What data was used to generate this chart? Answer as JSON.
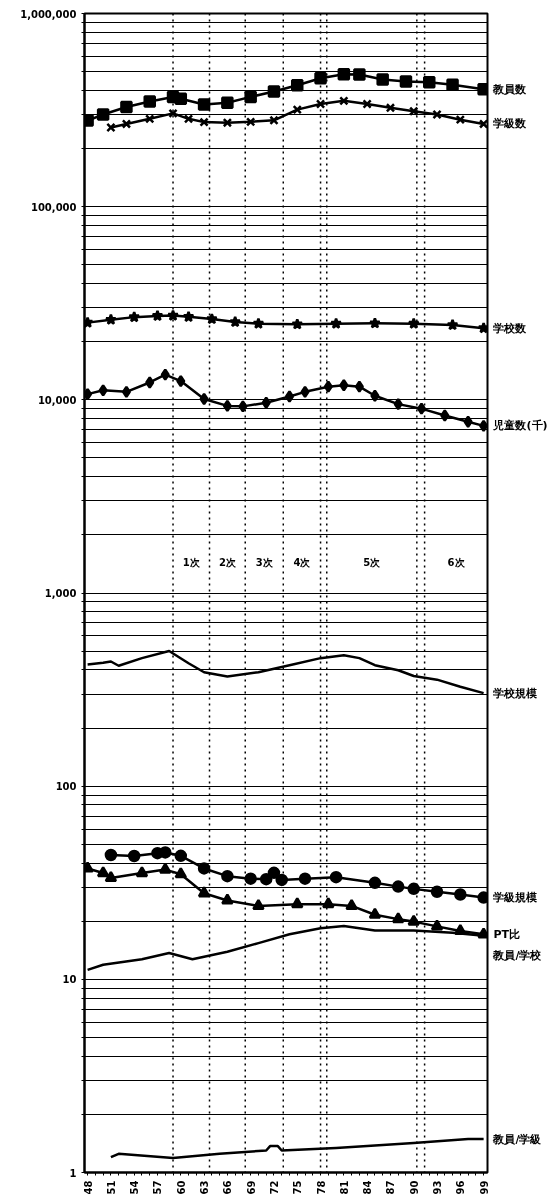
{
  "chart_data": {
    "type": "line",
    "log": "y",
    "grid": "y",
    "xlim": [
      1947.6,
      1999.5
    ],
    "ylim": [
      1,
      1000000
    ],
    "xticks": [
      {
        "value": 1948,
        "label": "48"
      },
      {
        "value": 1949,
        "label": null
      },
      {
        "value": 1950,
        "label": null
      },
      {
        "value": 1951,
        "label": "51"
      },
      {
        "value": 1952,
        "label": null
      },
      {
        "value": 1953,
        "label": null
      },
      {
        "value": 1954,
        "label": "54"
      },
      {
        "value": 1955,
        "label": null
      },
      {
        "value": 1956,
        "label": null
      },
      {
        "value": 1957,
        "label": "57"
      },
      {
        "value": 1958,
        "label": null
      },
      {
        "value": 1959,
        "label": null
      },
      {
        "value": 1960,
        "label": "60"
      },
      {
        "value": 1961,
        "label": null
      },
      {
        "value": 1962,
        "label": null
      },
      {
        "value": 1963,
        "label": "63"
      },
      {
        "value": 1964,
        "label": null
      },
      {
        "value": 1965,
        "label": null
      },
      {
        "value": 1966,
        "label": "66"
      },
      {
        "value": 1967,
        "label": null
      },
      {
        "value": 1968,
        "label": null
      },
      {
        "value": 1969,
        "label": "69"
      },
      {
        "value": 1970,
        "label": null
      },
      {
        "value": 1971,
        "label": null
      },
      {
        "value": 1972,
        "label": "72"
      },
      {
        "value": 1973,
        "label": null
      },
      {
        "value": 1974,
        "label": null
      },
      {
        "value": 1975,
        "label": "75"
      },
      {
        "value": 1976,
        "label": null
      },
      {
        "value": 1977,
        "label": null
      },
      {
        "value": 1978,
        "label": "78"
      },
      {
        "value": 1979,
        "label": null
      },
      {
        "value": 1980,
        "label": null
      },
      {
        "value": 1981,
        "label": "81"
      },
      {
        "value": 1982,
        "label": null
      },
      {
        "value": 1983,
        "label": null
      },
      {
        "value": 1984,
        "label": "84"
      },
      {
        "value": 1985,
        "label": null
      },
      {
        "value": 1986,
        "label": null
      },
      {
        "value": 1987,
        "label": "87"
      },
      {
        "value": 1988,
        "label": null
      },
      {
        "value": 1989,
        "label": null
      },
      {
        "value": 1990,
        "label": "90"
      },
      {
        "value": 1991,
        "label": null
      },
      {
        "value": 1992,
        "label": null
      },
      {
        "value": 1993,
        "label": "93"
      },
      {
        "value": 1994,
        "label": null
      },
      {
        "value": 1995,
        "label": null
      },
      {
        "value": 1996,
        "label": "96"
      },
      {
        "value": 1997,
        "label": null
      },
      {
        "value": 1998,
        "label": null
      },
      {
        "value": 1999,
        "label": "99"
      }
    ],
    "yticks": [
      1,
      {
        "value": 2,
        "label": null
      },
      {
        "value": 3,
        "label": null
      },
      {
        "value": 4,
        "label": null
      },
      {
        "value": 5,
        "label": null
      },
      {
        "value": 6,
        "label": null
      },
      {
        "value": 7,
        "label": null
      },
      {
        "value": 8,
        "label": null
      },
      {
        "value": 9,
        "label": null
      },
      10,
      {
        "value": 20,
        "label": null
      },
      {
        "value": 30,
        "label": null
      },
      {
        "value": 40,
        "label": null
      },
      {
        "value": 50,
        "label": null
      },
      {
        "value": 60,
        "label": null
      },
      {
        "value": 70,
        "label": null
      },
      {
        "value": 80,
        "label": null
      },
      {
        "value": 90,
        "label": null
      },
      100,
      {
        "value": 200,
        "label": null
      },
      {
        "value": 300,
        "label": null
      },
      {
        "value": 400,
        "label": null
      },
      {
        "value": 500,
        "label": null
      },
      {
        "value": 600,
        "label": null
      },
      {
        "value": 700,
        "label": null
      },
      {
        "value": 800,
        "label": null
      },
      {
        "value": 900,
        "label": null
      },
      {
        "value": 1000,
        "label": "1,000"
      },
      {
        "value": 2000,
        "label": null
      },
      {
        "value": 3000,
        "label": null
      },
      {
        "value": 4000,
        "label": null
      },
      {
        "value": 5000,
        "label": null
      },
      {
        "value": 6000,
        "label": null
      },
      {
        "value": 7000,
        "label": null
      },
      {
        "value": 8000,
        "label": null
      },
      {
        "value": 9000,
        "label": null
      },
      {
        "value": 10000,
        "label": "10,000"
      },
      {
        "value": 20000,
        "label": null
      },
      {
        "value": 30000,
        "label": null
      },
      {
        "value": 40000,
        "label": null
      },
      {
        "value": 50000,
        "label": null
      },
      {
        "value": 60000,
        "label": null
      },
      {
        "value": 70000,
        "label": null
      },
      {
        "value": 80000,
        "label": null
      },
      {
        "value": 90000,
        "label": null
      },
      {
        "value": 100000,
        "label": "100,000"
      },
      {
        "value": 200000,
        "label": null
      },
      {
        "value": 300000,
        "label": null
      },
      {
        "value": 400000,
        "label": null
      },
      {
        "value": 500000,
        "label": null
      },
      {
        "value": 600000,
        "label": null
      },
      {
        "value": 700000,
        "label": null
      },
      {
        "value": 800000,
        "label": null
      },
      {
        "value": 900000,
        "label": null
      },
      {
        "value": 1000000,
        "label": "1,000,000"
      }
    ],
    "series": [
      {
        "name": "教員数",
        "color": "#000000",
        "marker": "square",
        "x": [
          1948,
          1950,
          1953,
          1956,
          1959,
          1960,
          1963,
          1966,
          1969,
          1972,
          1975,
          1978,
          1981,
          1983,
          1986,
          1989,
          1992,
          1995,
          1999
        ],
        "values": [
          279000,
          300000,
          328000,
          350000,
          370000,
          362000,
          338000,
          345000,
          370000,
          395000,
          425000,
          462000,
          485000,
          483000,
          455000,
          445000,
          441000,
          428000,
          405000
        ]
      },
      {
        "name": "学級数",
        "color": "#000000",
        "marker": "cross",
        "x": [
          1951,
          1953,
          1956,
          1959,
          1961,
          1963,
          1966,
          1969,
          1972,
          1975,
          1978,
          1981,
          1984,
          1987,
          1990,
          1993,
          1996,
          1999
        ],
        "values": [
          257000,
          268000,
          285000,
          304000,
          285000,
          274000,
          272000,
          275000,
          280000,
          318000,
          340000,
          353000,
          340000,
          325000,
          312000,
          300000,
          282000,
          268000
        ]
      },
      {
        "name": "学校数",
        "color": "#000000",
        "marker": "star",
        "x": [
          1948,
          1951,
          1954,
          1957,
          1959,
          1961,
          1964,
          1967,
          1970,
          1975,
          1980,
          1985,
          1990,
          1995,
          1999
        ],
        "values": [
          25100,
          26000,
          26800,
          27200,
          27300,
          26900,
          26200,
          25300,
          24800,
          24600,
          24800,
          24900,
          24800,
          24400,
          23500
        ]
      },
      {
        "name": "児童数(千)",
        "color": "#000000",
        "marker": "diamond",
        "x": [
          1948,
          1950,
          1953,
          1956,
          1958,
          1960,
          1963,
          1966,
          1968,
          1971,
          1974,
          1976,
          1979,
          1981,
          1983,
          1985,
          1988,
          1991,
          1994,
          1997,
          1999
        ],
        "values": [
          10700,
          11200,
          11000,
          12300,
          13500,
          12500,
          10100,
          9300,
          9250,
          9660,
          10400,
          11000,
          11700,
          11900,
          11700,
          10500,
          9500,
          9000,
          8300,
          7700,
          7330
        ]
      },
      {
        "name": "学校規模",
        "color": "#000000",
        "marker": "none",
        "x": [
          1948,
          1950,
          1951,
          1952,
          1955,
          1958.5,
          1961,
          1963,
          1966,
          1970,
          1974,
          1978,
          1981,
          1983,
          1985,
          1988,
          1990,
          1993,
          1996,
          1999
        ],
        "values": [
          427,
          435,
          442,
          420,
          460,
          501,
          433,
          389,
          370,
          389,
          423,
          460,
          476,
          460,
          423,
          398,
          372,
          356,
          327,
          303
        ]
      },
      {
        "name": "学級規模",
        "color": "#000000",
        "marker": "circle",
        "x": [
          1951,
          1954,
          1957,
          1958,
          1960,
          1963,
          1966,
          1969,
          1971,
          1972,
          1973,
          1976,
          1980,
          1985,
          1988,
          1990,
          1993,
          1996,
          1999
        ],
        "values": [
          44,
          43.5,
          45,
          45.4,
          43.6,
          37.5,
          34.2,
          33.2,
          33,
          35.6,
          32.7,
          33.2,
          33.8,
          31.6,
          30.2,
          29.4,
          28.4,
          27.5,
          26.5
        ]
      },
      {
        "name": "PT比",
        "color": "#000000",
        "marker": "triangle",
        "x": [
          1948,
          1950,
          1951,
          1955,
          1958,
          1960,
          1963,
          1966,
          1970,
          1975,
          1979,
          1982,
          1985,
          1988,
          1990,
          1993,
          1996,
          1999
        ],
        "values": [
          37.5,
          35.5,
          33.5,
          35.5,
          37,
          35,
          27.9,
          25.6,
          24,
          24.5,
          24.5,
          24,
          21.6,
          20.5,
          19.9,
          18.8,
          17.8,
          17.1
        ]
      },
      {
        "name": "教員/学校",
        "color": "#000000",
        "marker": "none",
        "x": [
          1948,
          1950,
          1955,
          1958.5,
          1961.5,
          1966,
          1970,
          1974,
          1978,
          1981,
          1985,
          1990,
          1995,
          1999
        ],
        "values": [
          11.2,
          11.9,
          12.7,
          13.7,
          12.7,
          13.9,
          15.4,
          17.1,
          18.4,
          18.9,
          17.9,
          17.9,
          17.4,
          16.8
        ]
      },
      {
        "name": "教員/学級",
        "color": "#000000",
        "marker": "none",
        "x": [
          1951,
          1952,
          1959,
          1965,
          1971,
          1971.5,
          1972.5,
          1973,
          1980,
          1990,
          1997,
          1999
        ],
        "values": [
          1.2,
          1.25,
          1.19,
          1.25,
          1.3,
          1.37,
          1.37,
          1.3,
          1.34,
          1.42,
          1.49,
          1.49
        ]
      }
    ],
    "ref_lines": [
      {
        "axis": "x",
        "value": 1959,
        "color": "#000000",
        "line_style": "dotted"
      },
      {
        "axis": "x",
        "value": 1963.7,
        "color": "#000000",
        "line_style": "dotted"
      },
      {
        "axis": "x",
        "value": 1968.3,
        "color": "#000000",
        "line_style": "dotted"
      },
      {
        "axis": "x",
        "value": 1973.2,
        "color": "#000000",
        "line_style": "dotted"
      },
      {
        "axis": "x",
        "value": 1978,
        "color": "#000000",
        "line_style": "dotted"
      },
      {
        "axis": "x",
        "value": 1978.8,
        "color": "#000000",
        "line_style": "dotted"
      },
      {
        "axis": "x",
        "value": 1990.4,
        "color": "#000000",
        "line_style": "dotted"
      },
      {
        "axis": "x",
        "value": 1991.4,
        "color": "#000000",
        "line_style": "dotted"
      }
    ],
    "annotations": [
      "1次",
      "2次",
      "3次",
      "4次",
      "5次",
      "6次"
    ]
  }
}
